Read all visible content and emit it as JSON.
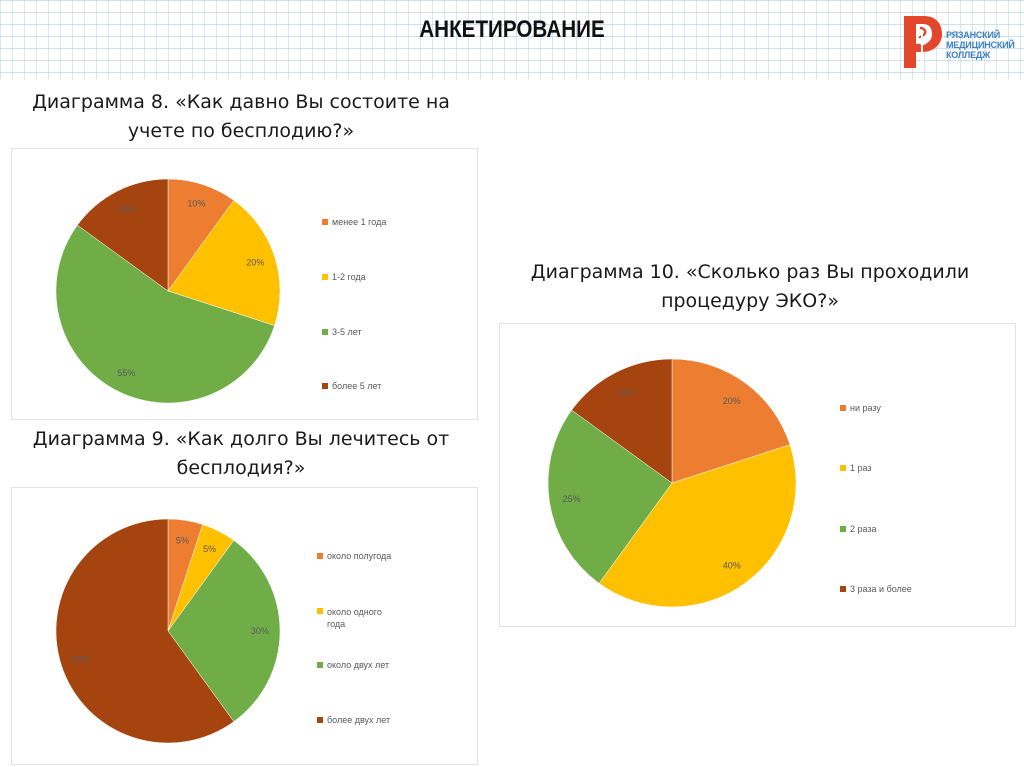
{
  "slide": {
    "title": "АНКЕТИРОВАНИЕ",
    "logo": {
      "icon": "caduceus-r-logo-icon",
      "lines": [
        "РЯЗАНСКИЙ",
        "МЕДИЦИНСКИЙ",
        "КОЛЛЕДЖ"
      ],
      "color_mark": "#e3472b",
      "color_text": "#3b7fc4"
    }
  },
  "captions": {
    "chart8_line1": "Диаграмма 8. «Как давно Вы состоите на",
    "chart8_line2": "учете по бесплодию?»",
    "chart9_line1": "Диаграмма 9. «Как долго Вы лечитесь от",
    "chart9_line2": "бесплодия?»",
    "chart10_line1": "Диаграмма 10. «Сколько раз Вы проходили",
    "chart10_line2": "процедуру ЭКО?»"
  },
  "colors": {
    "orange": "#ed7d31",
    "yellow": "#ffc000",
    "green": "#70ad47",
    "brown": "#a5440f"
  },
  "chart_data": [
    {
      "id": "chart8",
      "type": "pie",
      "title": "Диаграмма 8. «Как давно Вы состоите на учете по бесплодию?»",
      "categories": [
        "менее 1 года",
        "1-2 года",
        "3-5 лет",
        "более 5 лет"
      ],
      "values": [
        10,
        20,
        55,
        15
      ],
      "labels": [
        "10%",
        "20%",
        "55%",
        "15%"
      ],
      "colors": [
        "#ed7d31",
        "#ffc000",
        "#70ad47",
        "#a5440f"
      ],
      "legend_position": "right"
    },
    {
      "id": "chart9",
      "type": "pie",
      "title": "Диаграмма 9. «Как долго Вы лечитесь от бесплодия?»",
      "categories": [
        "около полугода",
        "около одного года",
        "около двух лет",
        "более двух лет"
      ],
      "values": [
        5,
        5,
        30,
        60
      ],
      "labels": [
        "5%",
        "5%",
        "30%",
        "60%"
      ],
      "colors": [
        "#ed7d31",
        "#ffc000",
        "#70ad47",
        "#a5440f"
      ],
      "legend_position": "right"
    },
    {
      "id": "chart10",
      "type": "pie",
      "title": "Диаграмма 10. «Сколько раз Вы проходили процедуру ЭКО?»",
      "categories": [
        "ни разу",
        "1 раз",
        "2 раза",
        "3 раза и более"
      ],
      "values": [
        20,
        40,
        25,
        15
      ],
      "labels": [
        "20%",
        "40%",
        "25%",
        "15%"
      ],
      "colors": [
        "#ed7d31",
        "#ffc000",
        "#70ad47",
        "#a5440f"
      ],
      "legend_position": "right"
    }
  ],
  "legends": {
    "chart8": [
      "менее 1 года",
      "1-2 года",
      "3-5 лет",
      "более 5 лет"
    ],
    "chart9": [
      "около полугода",
      "около одного года",
      "около двух лет",
      "более двух лет"
    ],
    "chart10": [
      "ни разу",
      "1 раз",
      "2 раза",
      "3 раза и более"
    ]
  }
}
